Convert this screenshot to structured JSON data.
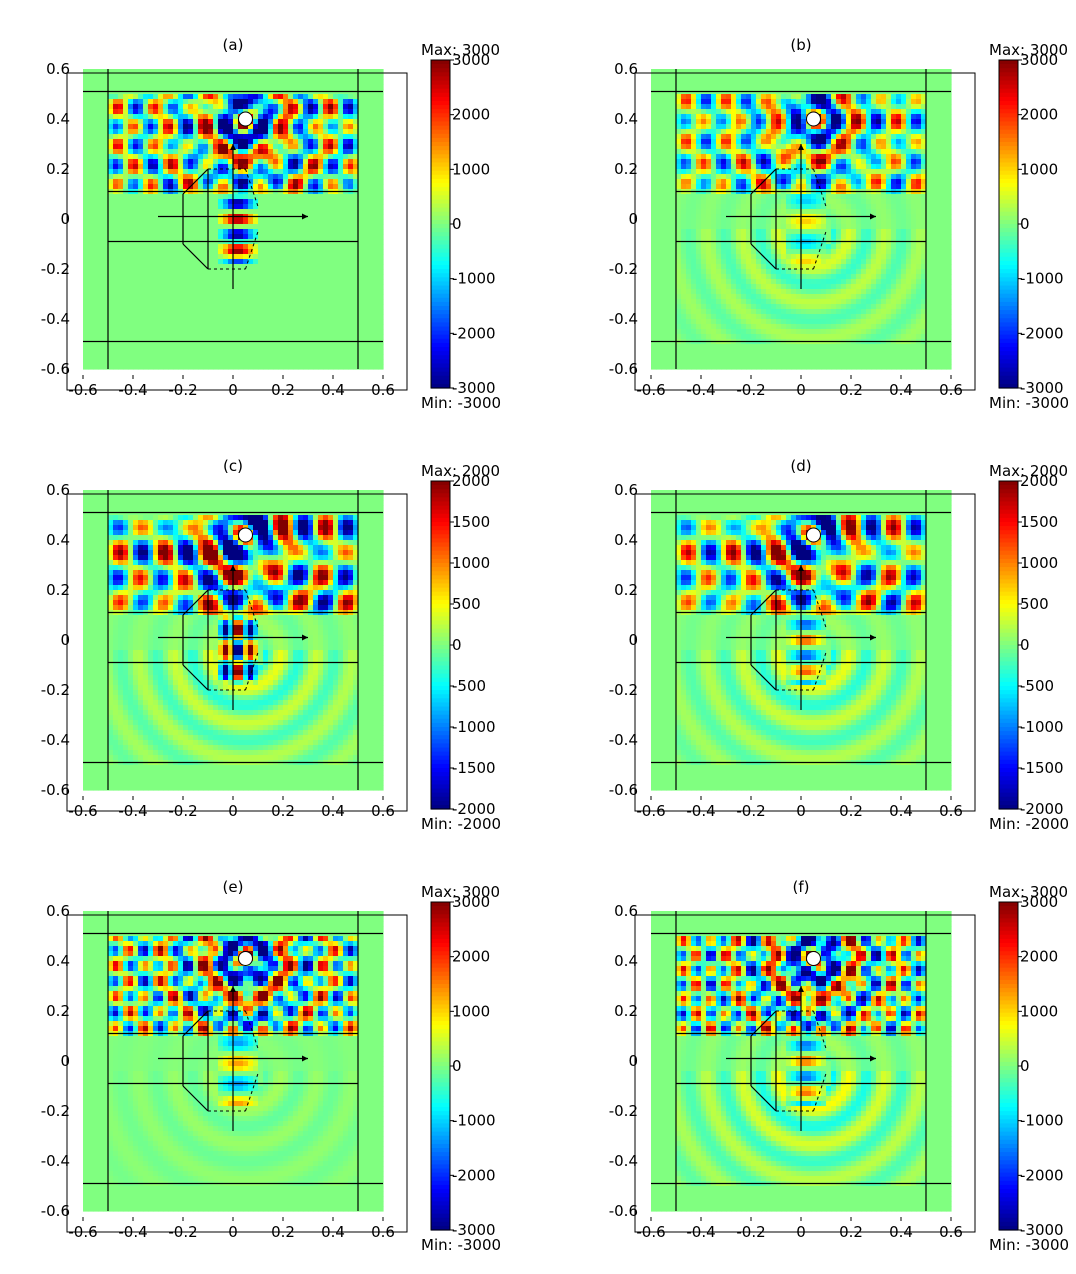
{
  "chart_data": [
    {
      "type": "heatmap",
      "label": "(a)",
      "xlim": [
        -0.6,
        0.6
      ],
      "ylim": [
        -0.6,
        0.6
      ],
      "x_ticks": [
        "-0.6",
        "-0.4",
        "-0.2",
        "0",
        "0.2",
        "0.4",
        "0.6"
      ],
      "y_ticks": [
        "0.6",
        "0.4",
        "0.2",
        "0",
        "-0.2",
        "-0.4",
        "-0.6"
      ],
      "colorbar": {
        "max_label": "Max: 3000",
        "min_label": "Min: -3000",
        "range": [
          -3000,
          3000
        ],
        "ticks": [
          "3000",
          "2000",
          "1000",
          "0",
          "-1000",
          "-2000",
          "-3000"
        ],
        "colormap": "jet"
      },
      "source": {
        "x": 0.05,
        "y": 0.4
      },
      "pattern": {
        "fx": 14,
        "fy": 13,
        "amp": 1.0,
        "below": 0.0,
        "lens": 1.0,
        "lens_mode": "axis"
      }
    },
    {
      "type": "heatmap",
      "label": "(b)",
      "xlim": [
        -0.6,
        0.6
      ],
      "ylim": [
        -0.6,
        0.6
      ],
      "x_ticks": [
        "-0.6",
        "-0.4",
        "-0.2",
        "0",
        "0.2",
        "0.4",
        "0.6"
      ],
      "y_ticks": [
        "0.6",
        "0.4",
        "0.2",
        "0",
        "-0.2",
        "-0.4",
        "-0.6"
      ],
      "colorbar": {
        "max_label": "Max: 3000",
        "min_label": "Min: -3000",
        "range": [
          -3000,
          3000
        ],
        "ticks": [
          "3000",
          "2000",
          "1000",
          "0",
          "-1000",
          "-2000",
          "-3000"
        ],
        "colormap": "jet"
      },
      "source": {
        "x": 0.05,
        "y": 0.4
      },
      "pattern": {
        "fx": 13,
        "fy": 12,
        "amp": 0.85,
        "below": 0.25,
        "lens": 0.35,
        "lens_mode": "soft"
      }
    },
    {
      "type": "heatmap",
      "label": "(c)",
      "xlim": [
        -0.6,
        0.6
      ],
      "ylim": [
        -0.6,
        0.6
      ],
      "x_ticks": [
        "-0.6",
        "-0.4",
        "-0.2",
        "0",
        "0.2",
        "0.4",
        "0.6"
      ],
      "y_ticks": [
        "0.6",
        "0.4",
        "0.2",
        "0",
        "-0.2",
        "-0.4",
        "-0.6"
      ],
      "colorbar": {
        "max_label": "Max: 2000",
        "min_label": "Min: -2000",
        "range": [
          -2000,
          2000
        ],
        "ticks": [
          "2000",
          "1500",
          "1000",
          "500",
          "0",
          "-500",
          "-1000",
          "-1500",
          "-2000"
        ],
        "colormap": "jet"
      },
      "source": {
        "x": 0.05,
        "y": 0.42
      },
      "pattern": {
        "fx": 11,
        "fy": 10,
        "amp": 1.15,
        "below": 0.3,
        "lens": 1.3,
        "lens_mode": "blob"
      }
    },
    {
      "type": "heatmap",
      "label": "(d)",
      "xlim": [
        -0.6,
        0.6
      ],
      "ylim": [
        -0.6,
        0.6
      ],
      "x_ticks": [
        "-0.6",
        "-0.4",
        "-0.2",
        "0",
        "0.2",
        "0.4",
        "0.6"
      ],
      "y_ticks": [
        "0.6",
        "0.4",
        "0.2",
        "0",
        "-0.2",
        "-0.4",
        "-0.6"
      ],
      "colorbar": {
        "max_label": "Max: 2000",
        "min_label": "Min: -2000",
        "range": [
          -2000,
          2000
        ],
        "ticks": [
          "2000",
          "1500",
          "1000",
          "500",
          "0",
          "-500",
          "-1000",
          "-1500",
          "-2000"
        ],
        "colormap": "jet"
      },
      "source": {
        "x": 0.05,
        "y": 0.42
      },
      "pattern": {
        "fx": 11,
        "fy": 10,
        "amp": 1.0,
        "below": 0.3,
        "lens": 0.6,
        "lens_mode": "axis"
      }
    },
    {
      "type": "heatmap",
      "label": "(e)",
      "xlim": [
        -0.6,
        0.6
      ],
      "ylim": [
        -0.6,
        0.6
      ],
      "x_ticks": [
        "-0.6",
        "-0.4",
        "-0.2",
        "0",
        "0.2",
        "0.4",
        "0.6"
      ],
      "y_ticks": [
        "0.6",
        "0.4",
        "0.2",
        "0",
        "-0.2",
        "-0.4",
        "-0.6"
      ],
      "colorbar": {
        "max_label": "Max: 3000",
        "min_label": "Min: -3000",
        "range": [
          -3000,
          3000
        ],
        "ticks": [
          "3000",
          "2000",
          "1000",
          "0",
          "-1000",
          "-2000",
          "-3000"
        ],
        "colormap": "jet"
      },
      "source": {
        "x": 0.05,
        "y": 0.41
      },
      "pattern": {
        "fx": 17,
        "fy": 16,
        "amp": 1.0,
        "below": 0.1,
        "lens": 0.45,
        "lens_mode": "soft"
      }
    },
    {
      "type": "heatmap",
      "label": "(f)",
      "xlim": [
        -0.6,
        0.6
      ],
      "ylim": [
        -0.6,
        0.6
      ],
      "x_ticks": [
        "-0.6",
        "-0.4",
        "-0.2",
        "0",
        "0.2",
        "0.4",
        "0.6"
      ],
      "y_ticks": [
        "0.6",
        "0.4",
        "0.2",
        "0",
        "-0.2",
        "-0.4",
        "-0.6"
      ],
      "colorbar": {
        "max_label": "Max: 3000",
        "min_label": "Min: -3000",
        "range": [
          -3000,
          3000
        ],
        "ticks": [
          "3000",
          "2000",
          "1000",
          "0",
          "-1000",
          "-2000",
          "-3000"
        ],
        "colormap": "jet"
      },
      "source": {
        "x": 0.05,
        "y": 0.41
      },
      "pattern": {
        "fx": 18,
        "fy": 17,
        "amp": 1.0,
        "below": 0.35,
        "lens": 0.55,
        "lens_mode": "axis"
      }
    }
  ]
}
